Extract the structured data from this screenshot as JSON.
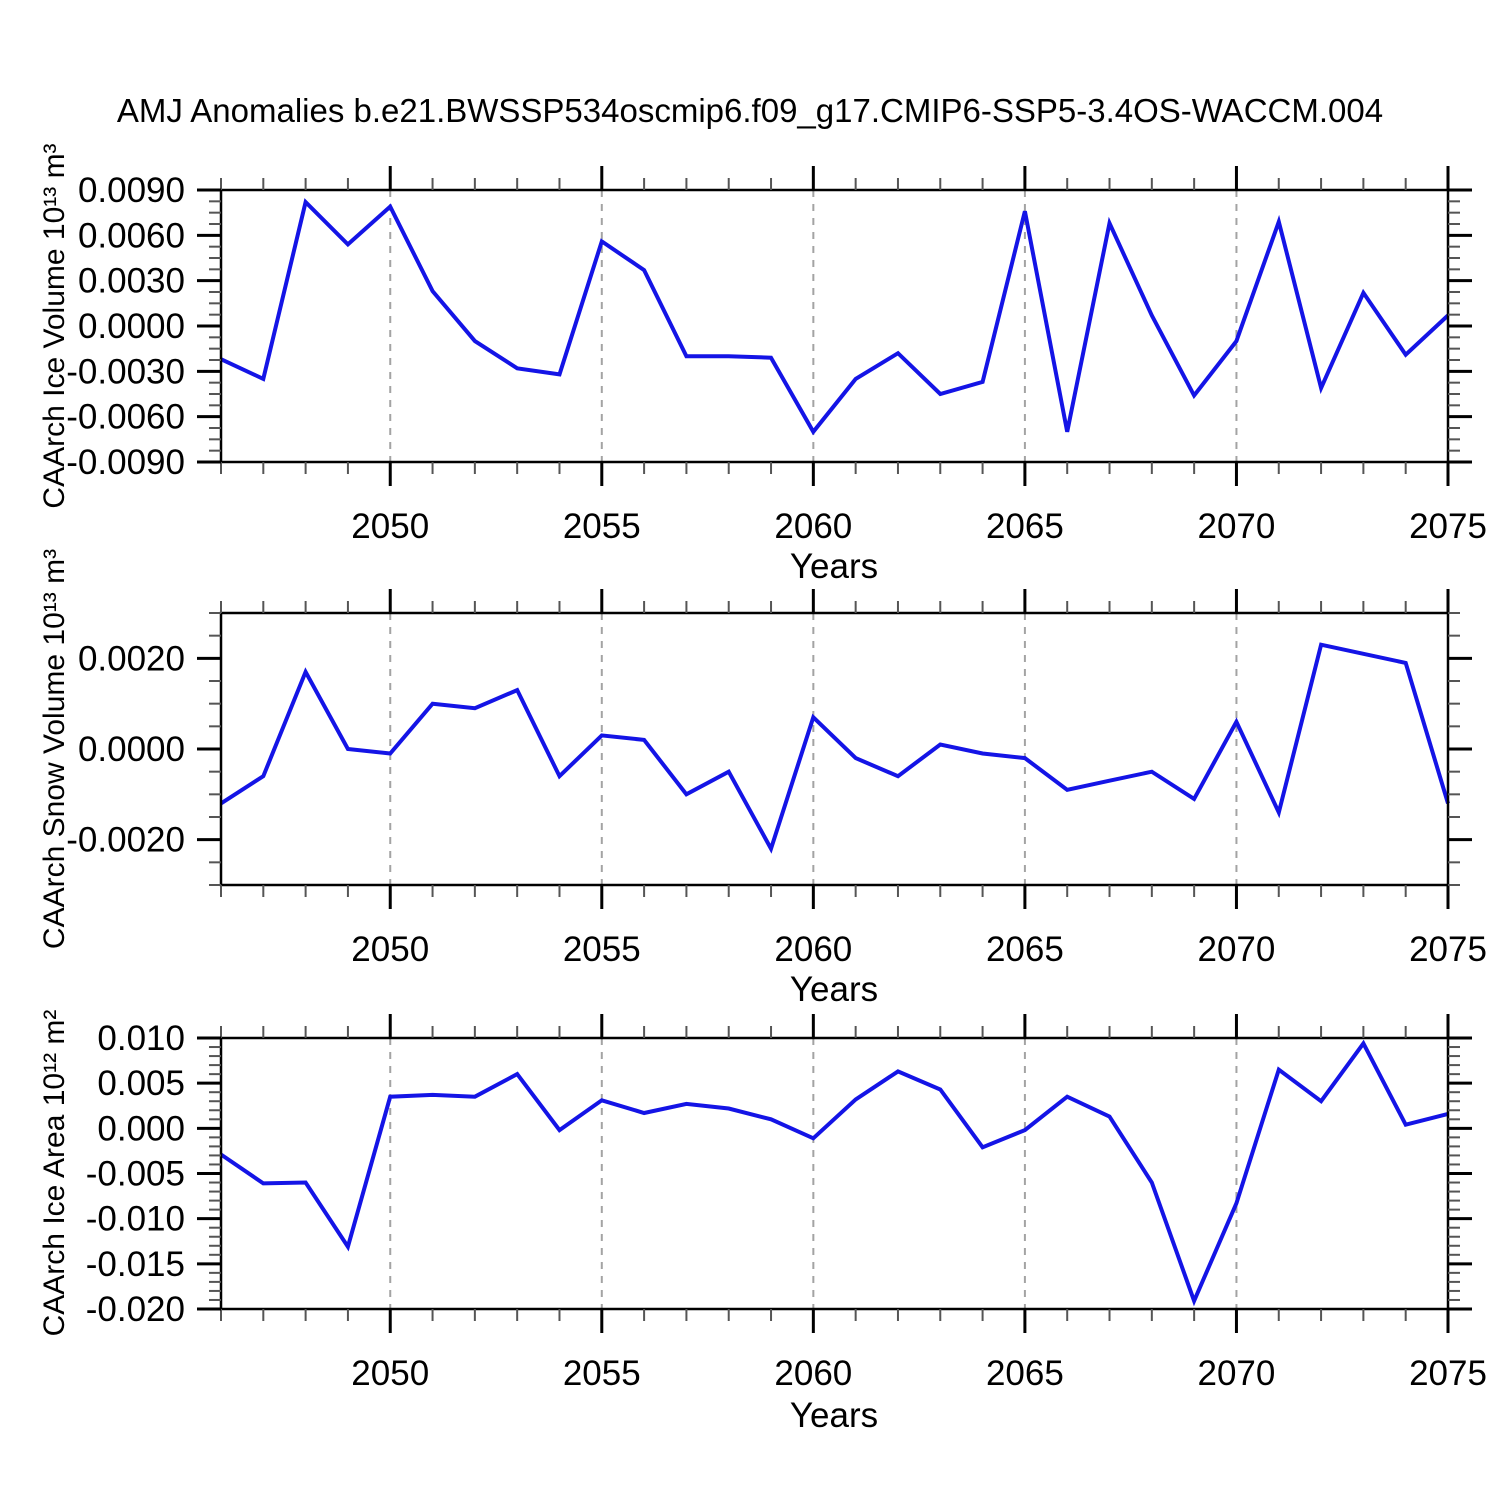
{
  "title": "AMJ Anomalies b.e21.BWSSP534oscmip6.f09_g17.CMIP6-SSP5-3.4OS-WACCM.004",
  "colors": {
    "line": "#1414e6",
    "grid": "#a3a3a3",
    "frame": "#000000",
    "major_tick": "#000000",
    "minor_tick": "#555555",
    "text": "#000000"
  },
  "x_axis": {
    "label": "Years",
    "range": [
      2046,
      2075
    ],
    "ticks": [
      2050,
      2055,
      2060,
      2065,
      2070,
      2075
    ],
    "tick_labels": [
      "2050",
      "2055",
      "2060",
      "2065",
      "2070",
      "2075"
    ],
    "gridlines": [
      2050,
      2055,
      2060,
      2065,
      2070
    ],
    "minor_step": 1
  },
  "chart_data": [
    {
      "type": "line",
      "name": "ice-volume",
      "ylabel": "CAArch Ice Volume 10¹³ m³",
      "xlabel": "Years",
      "x": [
        2046,
        2047,
        2048,
        2049,
        2050,
        2051,
        2052,
        2053,
        2054,
        2055,
        2056,
        2057,
        2058,
        2059,
        2060,
        2061,
        2062,
        2063,
        2064,
        2065,
        2066,
        2067,
        2068,
        2069,
        2070,
        2071,
        2072,
        2073,
        2074,
        2075
      ],
      "values": [
        -0.0022,
        -0.0035,
        0.0082,
        0.0054,
        0.0079,
        0.0023,
        -0.001,
        -0.0028,
        -0.0032,
        0.0056,
        0.0037,
        -0.002,
        -0.002,
        -0.0021,
        -0.007,
        -0.0035,
        -0.0018,
        -0.0045,
        -0.0037,
        0.0076,
        -0.007,
        0.0068,
        0.0007,
        -0.0046,
        -0.001,
        0.0069,
        -0.0041,
        0.0022,
        -0.0019,
        0.0007
      ],
      "ylim": [
        -0.009,
        0.009
      ],
      "yticks": [
        0.009,
        0.006,
        0.003,
        0.0,
        -0.003,
        -0.006,
        -0.009
      ],
      "ytick_labels": [
        "0.0090",
        "0.0060",
        "0.0030",
        "0.0000",
        "-0.0030",
        "-0.0060",
        "-0.0090"
      ],
      "yminor_step": 0.00075
    },
    {
      "type": "line",
      "name": "snow-volume",
      "ylabel": "CAArch Snow Volume 10¹³ m³",
      "xlabel": "Years",
      "x": [
        2046,
        2047,
        2048,
        2049,
        2050,
        2051,
        2052,
        2053,
        2054,
        2055,
        2056,
        2057,
        2058,
        2059,
        2060,
        2061,
        2062,
        2063,
        2064,
        2065,
        2066,
        2067,
        2068,
        2069,
        2070,
        2071,
        2072,
        2073,
        2074,
        2075
      ],
      "values": [
        -0.0012,
        -0.0006,
        0.0017,
        0.0,
        -0.0001,
        0.001,
        0.0009,
        0.0013,
        -0.0006,
        0.0003,
        0.0002,
        -0.001,
        -0.0005,
        -0.0022,
        0.0007,
        -0.0002,
        -0.0006,
        0.0001,
        -0.0001,
        -0.0002,
        -0.0009,
        -0.0007,
        -0.0005,
        -0.0011,
        0.0006,
        -0.0014,
        0.0023,
        0.0021,
        0.0019,
        -0.0012
      ],
      "ylim": [
        -0.003,
        0.003
      ],
      "yticks": [
        0.002,
        0.0,
        -0.002
      ],
      "ytick_labels": [
        "0.0020",
        "0.0000",
        "-0.0020"
      ],
      "yminor_step": 0.0005
    },
    {
      "type": "line",
      "name": "ice-area",
      "ylabel": "CAArch Ice Area 10¹² m²",
      "xlabel": "Years",
      "x": [
        2046,
        2047,
        2048,
        2049,
        2050,
        2051,
        2052,
        2053,
        2054,
        2055,
        2056,
        2057,
        2058,
        2059,
        2060,
        2061,
        2062,
        2063,
        2064,
        2065,
        2066,
        2067,
        2068,
        2069,
        2070,
        2071,
        2072,
        2073,
        2074,
        2075
      ],
      "values": [
        -0.0029,
        -0.0061,
        -0.006,
        -0.0131,
        0.0035,
        0.0037,
        0.0035,
        0.006,
        -0.0002,
        0.0031,
        0.0017,
        0.0027,
        0.0022,
        0.001,
        -0.0011,
        0.0032,
        0.0063,
        0.0043,
        -0.0021,
        -0.0002,
        0.0035,
        0.0013,
        -0.006,
        -0.0191,
        -0.0083,
        0.0065,
        0.003,
        0.0094,
        0.0004,
        0.0016
      ],
      "ylim": [
        -0.02,
        0.01
      ],
      "yticks": [
        0.01,
        0.005,
        0.0,
        -0.005,
        -0.01,
        -0.015,
        -0.02
      ],
      "ytick_labels": [
        "0.010",
        "0.005",
        "0.000",
        "-0.005",
        "-0.010",
        "-0.015",
        "-0.020"
      ],
      "yminor_step": 0.001
    }
  ]
}
